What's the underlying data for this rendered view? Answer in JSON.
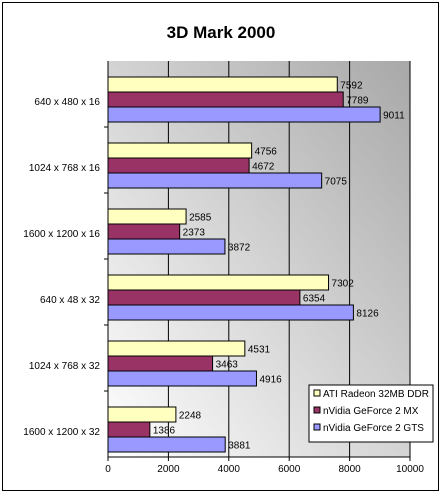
{
  "chart_data": {
    "type": "bar",
    "orientation": "horizontal",
    "title": "3D Mark 2000",
    "xlabel": "",
    "ylabel": "",
    "xlim": [
      0,
      10000
    ],
    "xticks": [
      0,
      2000,
      4000,
      6000,
      8000,
      10000
    ],
    "grid": true,
    "legend_position": "bottom-right",
    "categories": [
      "640 x 480 x 16",
      "1024 x 768 x 16",
      "1600 x 1200 x 16",
      "640 x 48 x 32",
      "1024 x 768 x 32",
      "1600 x 1200 x 32"
    ],
    "series": [
      {
        "name": "ATI Radeon 32MB DDR",
        "color": "#FFFFC0",
        "values": [
          7592,
          4756,
          2585,
          7302,
          4531,
          2248
        ]
      },
      {
        "name": "nVidia GeForce 2 MX",
        "color": "#993366",
        "values": [
          7789,
          4672,
          2373,
          6354,
          3463,
          1386
        ]
      },
      {
        "name": "nVidia GeForce 2 GTS",
        "color": "#9999FF",
        "values": [
          9011,
          7075,
          3872,
          8126,
          4916,
          3881
        ]
      }
    ]
  }
}
